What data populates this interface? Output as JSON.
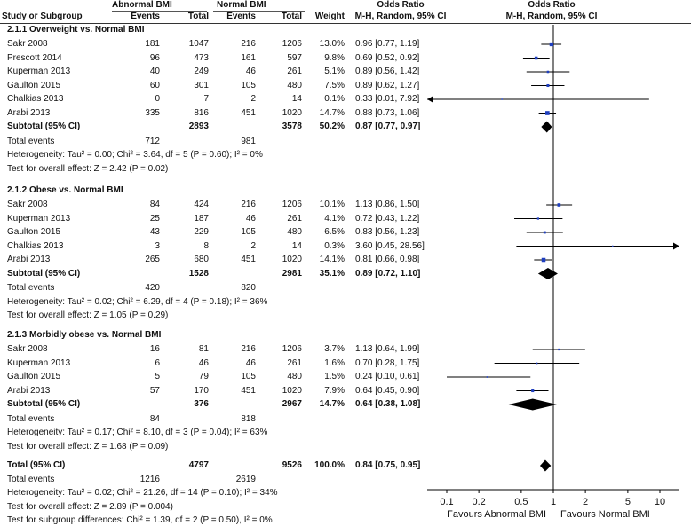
{
  "header": {
    "col_study": "Study or Subgroup",
    "group1": "Abnormal BMI",
    "group2": "Normal BMI",
    "events": "Events",
    "total": "Total",
    "weight": "Weight",
    "or_title": "Odds Ratio",
    "or_method": "M-H, Random, 95% CI",
    "plot_title": "Odds Ratio",
    "plot_method": "M-H, Random, 95% CI"
  },
  "chart_data": {
    "type": "forest",
    "title": "Odds Ratio",
    "method": "M-H, Random, 95% CI",
    "x_scale": "log",
    "x_ticks": [
      "0.1",
      "0.2",
      "0.5",
      "1",
      "2",
      "5",
      "10"
    ],
    "x_tick_values": [
      0.1,
      0.2,
      0.5,
      1,
      2,
      5,
      10
    ],
    "x_range": [
      0.1,
      10
    ],
    "xlabel_left": "Favours Abnormal BMI",
    "xlabel_right": "Favours Normal BMI",
    "subgroups": [
      {
        "title": "2.1.1 Overweight vs. Normal BMI",
        "studies": [
          {
            "name": "Sakr 2008",
            "e1": "181",
            "t1": "1047",
            "e2": "216",
            "t2": "1206",
            "weight": "13.0%",
            "or_text": "0.96 [0.77, 1.19]",
            "or": 0.96,
            "lo": 0.77,
            "hi": 1.19
          },
          {
            "name": "Prescott 2014",
            "e1": "96",
            "t1": "473",
            "e2": "161",
            "t2": "597",
            "weight": "9.8%",
            "or_text": "0.69 [0.52, 0.92]",
            "or": 0.69,
            "lo": 0.52,
            "hi": 0.92
          },
          {
            "name": "Kuperman 2013",
            "e1": "40",
            "t1": "249",
            "e2": "46",
            "t2": "261",
            "weight": "5.1%",
            "or_text": "0.89 [0.56, 1.42]",
            "or": 0.89,
            "lo": 0.56,
            "hi": 1.42
          },
          {
            "name": "Gaulton 2015",
            "e1": "60",
            "t1": "301",
            "e2": "105",
            "t2": "480",
            "weight": "7.5%",
            "or_text": "0.89 [0.62, 1.27]",
            "or": 0.89,
            "lo": 0.62,
            "hi": 1.27
          },
          {
            "name": "Chalkias 2013",
            "e1": "0",
            "t1": "7",
            "e2": "2",
            "t2": "14",
            "weight": "0.1%",
            "or_text": "0.33 [0.01, 7.92]",
            "or": 0.33,
            "lo": 0.01,
            "hi": 7.92
          },
          {
            "name": "Arabi 2013",
            "e1": "335",
            "t1": "816",
            "e2": "451",
            "t2": "1020",
            "weight": "14.7%",
            "or_text": "0.88 [0.73, 1.06]",
            "or": 0.88,
            "lo": 0.73,
            "hi": 1.06
          }
        ],
        "subtotal": {
          "label": "Subtotal (95% CI)",
          "t1": "2893",
          "t2": "3578",
          "weight": "50.2%",
          "or_text": "0.87 [0.77, 0.97]",
          "or": 0.87,
          "lo": 0.77,
          "hi": 0.97
        },
        "total_events": {
          "label": "Total events",
          "e1": "712",
          "e2": "981"
        },
        "heterogeneity": "Heterogeneity: Tau² = 0.00; Chi² = 3.64, df = 5 (P = 0.60); I² = 0%",
        "overall": "Test for overall effect: Z = 2.42 (P = 0.02)"
      },
      {
        "title": "2.1.2 Obese vs. Normal BMI",
        "studies": [
          {
            "name": "Sakr 2008",
            "e1": "84",
            "t1": "424",
            "e2": "216",
            "t2": "1206",
            "weight": "10.1%",
            "or_text": "1.13 [0.86, 1.50]",
            "or": 1.13,
            "lo": 0.86,
            "hi": 1.5
          },
          {
            "name": "Kuperman 2013",
            "e1": "25",
            "t1": "187",
            "e2": "46",
            "t2": "261",
            "weight": "4.1%",
            "or_text": "0.72 [0.43, 1.22]",
            "or": 0.72,
            "lo": 0.43,
            "hi": 1.22
          },
          {
            "name": "Gaulton 2015",
            "e1": "43",
            "t1": "229",
            "e2": "105",
            "t2": "480",
            "weight": "6.5%",
            "or_text": "0.83 [0.56, 1.23]",
            "or": 0.83,
            "lo": 0.56,
            "hi": 1.23
          },
          {
            "name": "Chalkias 2013",
            "e1": "3",
            "t1": "8",
            "e2": "2",
            "t2": "14",
            "weight": "0.3%",
            "or_text": "3.60 [0.45, 28.56]",
            "or": 3.6,
            "lo": 0.45,
            "hi": 28.56
          },
          {
            "name": "Arabi 2013",
            "e1": "265",
            "t1": "680",
            "e2": "451",
            "t2": "1020",
            "weight": "14.1%",
            "or_text": "0.81 [0.66, 0.98]",
            "or": 0.81,
            "lo": 0.66,
            "hi": 0.98
          }
        ],
        "subtotal": {
          "label": "Subtotal (95% CI)",
          "t1": "1528",
          "t2": "2981",
          "weight": "35.1%",
          "or_text": "0.89 [0.72, 1.10]",
          "or": 0.89,
          "lo": 0.72,
          "hi": 1.1
        },
        "total_events": {
          "label": "Total events",
          "e1": "420",
          "e2": "820"
        },
        "heterogeneity": "Heterogeneity: Tau² = 0.02; Chi² = 6.29, df = 4 (P = 0.18); I² = 36%",
        "overall": "Test for overall effect: Z = 1.05 (P = 0.29)"
      },
      {
        "title": "2.1.3 Morbidly obese vs. Normal BMI",
        "studies": [
          {
            "name": "Sakr 2008",
            "e1": "16",
            "t1": "81",
            "e2": "216",
            "t2": "1206",
            "weight": "3.7%",
            "or_text": "1.13 [0.64, 1.99]",
            "or": 1.13,
            "lo": 0.64,
            "hi": 1.99
          },
          {
            "name": "Kuperman 2013",
            "e1": "6",
            "t1": "46",
            "e2": "46",
            "t2": "261",
            "weight": "1.6%",
            "or_text": "0.70 [0.28, 1.75]",
            "or": 0.7,
            "lo": 0.28,
            "hi": 1.75
          },
          {
            "name": "Gaulton 2015",
            "e1": "5",
            "t1": "79",
            "e2": "105",
            "t2": "480",
            "weight": "1.5%",
            "or_text": "0.24 [0.10, 0.61]",
            "or": 0.24,
            "lo": 0.1,
            "hi": 0.61
          },
          {
            "name": "Arabi 2013",
            "e1": "57",
            "t1": "170",
            "e2": "451",
            "t2": "1020",
            "weight": "7.9%",
            "or_text": "0.64 [0.45, 0.90]",
            "or": 0.64,
            "lo": 0.45,
            "hi": 0.9
          }
        ],
        "subtotal": {
          "label": "Subtotal (95% CI)",
          "t1": "376",
          "t2": "2967",
          "weight": "14.7%",
          "or_text": "0.64 [0.38, 1.08]",
          "or": 0.64,
          "lo": 0.38,
          "hi": 1.08
        },
        "total_events": {
          "label": "Total events",
          "e1": "84",
          "e2": "818"
        },
        "heterogeneity": "Heterogeneity: Tau² = 0.17; Chi² = 8.10, df = 3 (P = 0.04); I² = 63%",
        "overall": "Test for overall effect: Z = 1.68 (P = 0.09)"
      }
    ],
    "total": {
      "label": "Total (95% CI)",
      "t1": "4797",
      "t2": "9526",
      "weight": "100.0%",
      "or_text": "0.84 [0.75, 0.95]",
      "or": 0.84,
      "lo": 0.75,
      "hi": 0.95
    },
    "total_events": {
      "label": "Total events",
      "e1": "1216",
      "e2": "2619"
    },
    "heterogeneity": "Heterogeneity: Tau² = 0.02; Chi² = 21.26, df = 14 (P = 0.10); I² = 34%",
    "overall": "Test for overall effect: Z = 2.89 (P = 0.004)",
    "subgroup_diff": "Test for subgroup differences: Chi² = 1.39, df = 2 (P = 0.50), I² = 0%",
    "colors": {
      "marker": "#1f3fbf",
      "diamond": "#000000",
      "line": "#000000"
    }
  }
}
